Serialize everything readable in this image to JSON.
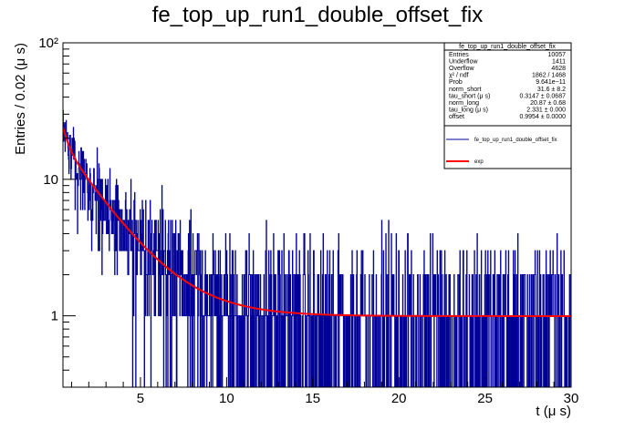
{
  "chart_data": {
    "type": "histogram",
    "title": "fe_top_up_run1_double_offset_fix",
    "xlabel": "t (μ s)",
    "ylabel": "Entries / 0.02 (μ s)",
    "x_range": [
      0.5,
      30
    ],
    "y_range": [
      0.3,
      100
    ],
    "y_scale": "log",
    "bin_width": 0.02,
    "x_ticks": [
      5,
      10,
      15,
      20,
      25,
      30
    ],
    "x_tick_labels": [
      "5",
      "10",
      "15",
      "20",
      "25",
      "30"
    ],
    "y_ticks": [
      1,
      10,
      100
    ],
    "y_tick_labels": [
      "1",
      "10",
      "10²"
    ],
    "histogram_color": "#000099",
    "fit_color": "#ff0000",
    "fit_function": {
      "norm_short": 31.6,
      "tau_short": 0.3147,
      "norm_long": 20.87,
      "tau_long": 2.331,
      "offset": 0.9954
    },
    "stats_box": {
      "title": "fe_top_up_run1_double_offset_fix",
      "rows": [
        {
          "label": "Entries",
          "value": "10057"
        },
        {
          "label": "Underflow",
          "value": "1411"
        },
        {
          "label": "Overflow",
          "value": "4628"
        },
        {
          "label": "χ² / ndf",
          "value": "1862 / 1468"
        },
        {
          "label": "Prob",
          "value": "9.641e−11"
        },
        {
          "label": "norm_short",
          "value": "31.6 ± 8.2"
        },
        {
          "label": "tau_short (μ s)",
          "value": "0.3147 ± 0.0687"
        },
        {
          "label": "norm_long",
          "value": "20.87 ± 0.68"
        },
        {
          "label": "tau_long (μ s)",
          "value": "2.331 ± 0.000"
        },
        {
          "label": "offset",
          "value": "0.9954 ± 0.0000"
        }
      ]
    },
    "legend": {
      "position": "top-right",
      "entries": [
        {
          "label": "fe_top_up_run1_double_offset_fix",
          "color": "#000099"
        },
        {
          "label": "exp",
          "color": "#ff0000"
        }
      ]
    }
  }
}
